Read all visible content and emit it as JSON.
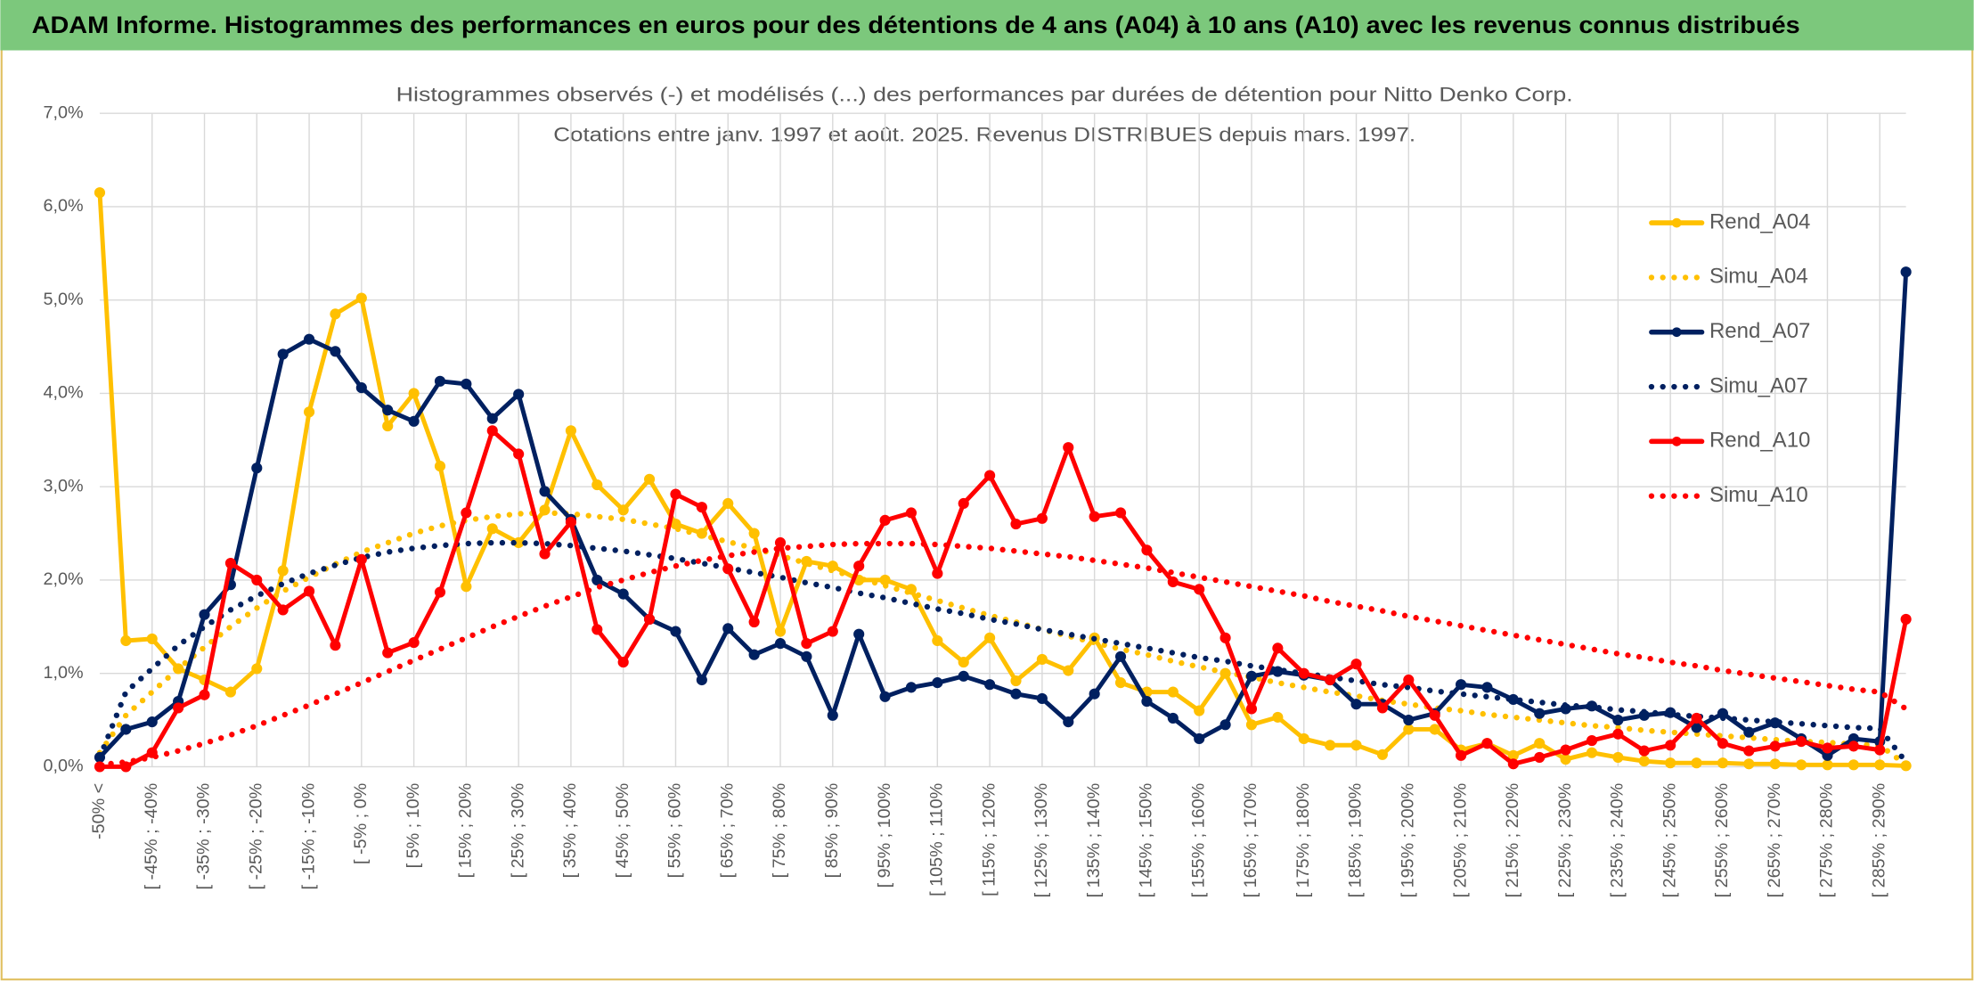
{
  "header": {
    "title": "ADAM Informe. Histogrammes des performances en euros pour des détentions de 4 ans (A04) à 10 ans (A10) avec les revenus connus distribués"
  },
  "chart_data": {
    "type": "line",
    "title": "Histogrammes observés (-) et modélisés (...) des performances par durées de détention pour Nitto Denko Corp.",
    "subtitle": "Cotations entre janv. 1997 et août. 2025. Revenus DISTRIBUES depuis mars. 1997.",
    "categories": [
      "-50% <",
      null,
      "[ -45% ; -40%",
      null,
      "[ -35% ; -30%",
      null,
      "[ -25% ; -20%",
      null,
      "[ -15% ; -10%",
      null,
      "[ -5% ; 0%",
      null,
      "[ 5% ; 10%",
      null,
      "[ 15% ; 20%",
      null,
      "[ 25% ; 30%",
      null,
      "[ 35% ; 40%",
      null,
      "[ 45% ; 50%",
      null,
      "[ 55% ; 60%",
      null,
      "[ 65% ; 70%",
      null,
      "[ 75% ; 80%",
      null,
      "[ 85% ; 90%",
      null,
      "[ 95% ; 100%",
      null,
      "[ 105% ; 110%",
      null,
      "[ 115% ; 120%",
      null,
      "[ 125% ; 130%",
      null,
      "[ 135% ; 140%",
      null,
      "[ 145% ; 150%",
      null,
      "[ 155% ; 160%",
      null,
      "[ 165% ; 170%",
      null,
      "[ 175% ; 180%",
      null,
      "[ 185% ; 190%",
      null,
      "[ 195% ; 200%",
      null,
      "[ 205% ; 210%",
      null,
      "[ 215% ; 220%",
      null,
      "[ 225% ; 230%",
      null,
      "[ 235% ; 240%",
      null,
      "[ 245% ; 250%",
      null,
      "[ 255% ; 260%",
      null,
      "[ 265% ; 270%",
      null,
      "[ 275% ; 280%",
      null,
      "[ 285% ; 290%",
      null
    ],
    "series": [
      {
        "name": "Rend_A04",
        "color": "#FFC000",
        "style": "solid",
        "markers": true,
        "values": [
          6.15,
          1.35,
          1.37,
          1.05,
          0.93,
          0.8,
          1.05,
          2.1,
          3.8,
          4.85,
          5.02,
          3.65,
          4.0,
          3.22,
          1.93,
          2.55,
          2.4,
          2.75,
          3.6,
          3.02,
          2.75,
          3.08,
          2.6,
          2.5,
          2.82,
          2.5,
          1.45,
          2.2,
          2.15,
          2.0,
          2.0,
          1.9,
          1.35,
          1.12,
          1.38,
          0.92,
          1.15,
          1.03,
          1.38,
          0.9,
          0.8,
          0.8,
          0.6,
          1.0,
          0.45,
          0.53,
          0.3,
          0.23,
          0.23,
          0.13,
          0.4,
          0.4,
          0.18,
          0.25,
          0.12,
          0.25,
          0.08,
          0.15,
          0.1,
          0.06,
          0.04,
          0.04,
          0.04,
          0.03,
          0.03,
          0.02,
          0.02,
          0.02,
          0.02,
          0.01
        ]
      },
      {
        "name": "Simu_A04",
        "color": "#FFC000",
        "style": "dotted",
        "markers": false,
        "values": [
          0.15,
          0.55,
          0.8,
          1.05,
          1.28,
          1.5,
          1.7,
          1.88,
          2.03,
          2.17,
          2.3,
          2.4,
          2.5,
          2.58,
          2.64,
          2.68,
          2.71,
          2.72,
          2.71,
          2.68,
          2.65,
          2.6,
          2.55,
          2.48,
          2.41,
          2.34,
          2.26,
          2.18,
          2.1,
          2.02,
          1.94,
          1.86,
          1.78,
          1.7,
          1.62,
          1.55,
          1.47,
          1.4,
          1.33,
          1.26,
          1.2,
          1.13,
          1.07,
          1.01,
          0.96,
          0.9,
          0.85,
          0.8,
          0.76,
          0.71,
          0.67,
          0.63,
          0.6,
          0.56,
          0.53,
          0.5,
          0.47,
          0.44,
          0.42,
          0.39,
          0.37,
          0.35,
          0.33,
          0.31,
          0.29,
          0.27,
          0.26,
          0.24,
          0.23,
          0.02
        ]
      },
      {
        "name": "Rend_A07",
        "color": "#002060",
        "style": "solid",
        "markers": true,
        "values": [
          0.1,
          0.4,
          0.48,
          0.7,
          1.63,
          1.95,
          3.2,
          4.42,
          4.58,
          4.45,
          4.06,
          3.82,
          3.7,
          4.13,
          4.1,
          3.73,
          3.99,
          2.95,
          2.65,
          2.0,
          1.85,
          1.58,
          1.45,
          0.93,
          1.48,
          1.2,
          1.32,
          1.18,
          0.55,
          1.42,
          0.75,
          0.85,
          0.9,
          0.97,
          0.88,
          0.78,
          0.73,
          0.48,
          0.78,
          1.18,
          0.7,
          0.52,
          0.3,
          0.45,
          0.97,
          1.02,
          0.98,
          0.93,
          0.67,
          0.67,
          0.5,
          0.57,
          0.88,
          0.85,
          0.72,
          0.57,
          0.62,
          0.65,
          0.5,
          0.55,
          0.58,
          0.42,
          0.57,
          0.37,
          0.47,
          0.3,
          0.12,
          0.3,
          0.27,
          5.3
        ]
      },
      {
        "name": "Simu_A07",
        "color": "#002060",
        "style": "dotted",
        "markers": false,
        "values": [
          0.1,
          0.8,
          1.05,
          1.3,
          1.5,
          1.68,
          1.83,
          1.96,
          2.07,
          2.16,
          2.24,
          2.3,
          2.34,
          2.37,
          2.39,
          2.4,
          2.4,
          2.39,
          2.37,
          2.34,
          2.31,
          2.27,
          2.23,
          2.18,
          2.13,
          2.08,
          2.03,
          1.97,
          1.92,
          1.86,
          1.81,
          1.75,
          1.69,
          1.64,
          1.58,
          1.53,
          1.47,
          1.42,
          1.37,
          1.32,
          1.27,
          1.22,
          1.17,
          1.13,
          1.08,
          1.04,
          1.0,
          0.96,
          0.92,
          0.88,
          0.85,
          0.81,
          0.78,
          0.75,
          0.72,
          0.69,
          0.66,
          0.64,
          0.61,
          0.59,
          0.56,
          0.54,
          0.52,
          0.5,
          0.48,
          0.46,
          0.44,
          0.42,
          0.41,
          0.05
        ]
      },
      {
        "name": "Rend_A10",
        "color": "#FF0000",
        "style": "solid",
        "markers": true,
        "values": [
          0,
          0,
          0.15,
          0.63,
          0.77,
          2.18,
          2.0,
          1.68,
          1.88,
          1.3,
          2.22,
          1.22,
          1.33,
          1.87,
          2.72,
          3.6,
          3.35,
          2.28,
          2.62,
          1.47,
          1.12,
          1.58,
          2.92,
          2.78,
          2.12,
          1.55,
          2.4,
          1.32,
          1.45,
          2.15,
          2.64,
          2.72,
          2.07,
          2.82,
          3.12,
          2.6,
          2.66,
          3.42,
          2.68,
          2.72,
          2.32,
          1.98,
          1.9,
          1.38,
          0.62,
          1.27,
          1.0,
          0.93,
          1.1,
          0.63,
          0.93,
          0.55,
          0.12,
          0.25,
          0.03,
          0.1,
          0.18,
          0.28,
          0.35,
          0.17,
          0.23,
          0.52,
          0.25,
          0.17,
          0.22,
          0.27,
          0.2,
          0.22,
          0.18,
          1.58
        ]
      },
      {
        "name": "Simu_A10",
        "color": "#FF0000",
        "style": "dotted",
        "markers": false,
        "values": [
          0.02,
          0.05,
          0.1,
          0.17,
          0.25,
          0.34,
          0.44,
          0.55,
          0.66,
          0.78,
          0.9,
          1.02,
          1.14,
          1.26,
          1.38,
          1.5,
          1.61,
          1.72,
          1.82,
          1.92,
          2.0,
          2.08,
          2.15,
          2.21,
          2.26,
          2.3,
          2.34,
          2.36,
          2.38,
          2.39,
          2.39,
          2.39,
          2.38,
          2.36,
          2.34,
          2.31,
          2.28,
          2.25,
          2.21,
          2.17,
          2.13,
          2.08,
          2.03,
          1.98,
          1.93,
          1.88,
          1.83,
          1.77,
          1.72,
          1.67,
          1.61,
          1.56,
          1.51,
          1.46,
          1.41,
          1.36,
          1.31,
          1.26,
          1.21,
          1.17,
          1.12,
          1.08,
          1.03,
          0.99,
          0.95,
          0.91,
          0.87,
          0.83,
          0.8,
          0.62
        ]
      }
    ],
    "ylim": [
      0,
      7
    ],
    "yticks": [
      {
        "value": 0,
        "label": "0,0%"
      },
      {
        "value": 1,
        "label": "1,0%"
      },
      {
        "value": 2,
        "label": "2,0%"
      },
      {
        "value": 3,
        "label": "3,0%"
      },
      {
        "value": 4,
        "label": "4,0%"
      },
      {
        "value": 5,
        "label": "5,0%"
      },
      {
        "value": 6,
        "label": "6,0%"
      },
      {
        "value": 7,
        "label": "7,0%"
      }
    ],
    "grid": true,
    "legend": "right"
  }
}
